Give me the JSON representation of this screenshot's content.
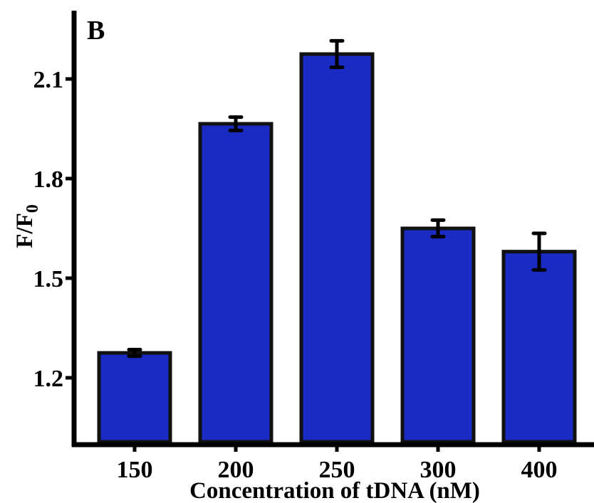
{
  "chart_data": {
    "type": "bar",
    "panel_label": "B",
    "xlabel": "Concentration of tDNA (nM)",
    "ylabel_main": "F/F",
    "ylabel_sub": "0",
    "categories": [
      "150",
      "200",
      "250",
      "300",
      "400"
    ],
    "values": [
      1.275,
      1.965,
      2.175,
      1.65,
      1.58
    ],
    "errors": [
      0.01,
      0.02,
      0.04,
      0.025,
      0.055
    ],
    "ylim": [
      0.95,
      2.3
    ],
    "yticks": [
      1.2,
      1.5,
      1.8,
      2.1
    ],
    "ytick_labels": [
      "1.2",
      "1.5",
      "1.8",
      "2.1"
    ],
    "grid": false,
    "legend": "none",
    "colors": {
      "bar_fill": "#1a2bc4",
      "bar_edge": "#111111",
      "axis": "#000000"
    }
  }
}
